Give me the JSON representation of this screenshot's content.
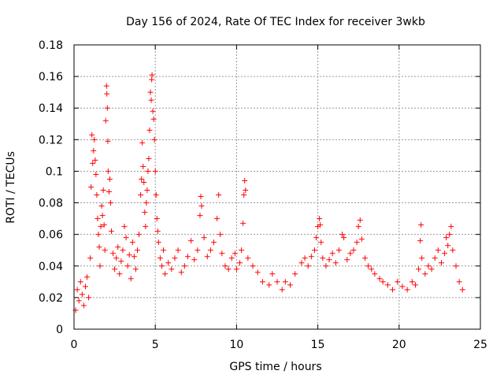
{
  "chart_data": {
    "type": "scatter",
    "title": "Day 156 of 2024, Rate Of TEC Index for receiver 3wkb",
    "xlabel": "GPS time / hours",
    "ylabel": "ROTI / TECUs",
    "xlim": [
      0,
      25
    ],
    "ylim": [
      0,
      0.18
    ],
    "x_ticks": [
      0,
      5,
      10,
      15,
      20,
      25
    ],
    "x_tick_labels": [
      "0",
      "5",
      "10",
      "15",
      "20",
      "25"
    ],
    "y_ticks": [
      0,
      0.02,
      0.04,
      0.06,
      0.08,
      0.1,
      0.12,
      0.14,
      0.16,
      0.18
    ],
    "y_tick_labels": [
      "0",
      "0.02",
      "0.04",
      "0.06",
      "0.08",
      "0.1",
      "0.12",
      "0.14",
      "0.16",
      "0.18"
    ],
    "grid": true,
    "marker": "+",
    "marker_color": "#ff0000",
    "series": [
      {
        "name": "ROTI",
        "points": [
          [
            0.1,
            0.012
          ],
          [
            0.2,
            0.025
          ],
          [
            0.3,
            0.018
          ],
          [
            0.4,
            0.03
          ],
          [
            0.5,
            0.022
          ],
          [
            0.6,
            0.015
          ],
          [
            0.7,
            0.027
          ],
          [
            0.8,
            0.033
          ],
          [
            0.9,
            0.02
          ],
          [
            1.0,
            0.045
          ],
          [
            1.05,
            0.09
          ],
          [
            1.1,
            0.123
          ],
          [
            1.15,
            0.105
          ],
          [
            1.2,
            0.113
          ],
          [
            1.25,
            0.12
          ],
          [
            1.3,
            0.107
          ],
          [
            1.35,
            0.098
          ],
          [
            1.4,
            0.085
          ],
          [
            1.45,
            0.07
          ],
          [
            1.5,
            0.06
          ],
          [
            1.55,
            0.052
          ],
          [
            1.6,
            0.04
          ],
          [
            1.65,
            0.065
          ],
          [
            1.7,
            0.078
          ],
          [
            1.75,
            0.072
          ],
          [
            1.8,
            0.088
          ],
          [
            1.85,
            0.066
          ],
          [
            1.9,
            0.05
          ],
          [
            1.95,
            0.132
          ],
          [
            2.0,
            0.154
          ],
          [
            2.02,
            0.149
          ],
          [
            2.05,
            0.14
          ],
          [
            2.08,
            0.119
          ],
          [
            2.1,
            0.1
          ],
          [
            2.15,
            0.087
          ],
          [
            2.2,
            0.095
          ],
          [
            2.25,
            0.08
          ],
          [
            2.3,
            0.062
          ],
          [
            2.4,
            0.048
          ],
          [
            2.5,
            0.038
          ],
          [
            2.6,
            0.045
          ],
          [
            2.7,
            0.052
          ],
          [
            2.8,
            0.035
          ],
          [
            2.9,
            0.043
          ],
          [
            3.0,
            0.05
          ],
          [
            3.1,
            0.065
          ],
          [
            3.2,
            0.058
          ],
          [
            3.3,
            0.04
          ],
          [
            3.4,
            0.047
          ],
          [
            3.5,
            0.032
          ],
          [
            3.6,
            0.055
          ],
          [
            3.7,
            0.046
          ],
          [
            3.8,
            0.038
          ],
          [
            3.9,
            0.05
          ],
          [
            4.0,
            0.06
          ],
          [
            4.1,
            0.085
          ],
          [
            4.15,
            0.095
          ],
          [
            4.2,
            0.118
          ],
          [
            4.25,
            0.103
          ],
          [
            4.3,
            0.093
          ],
          [
            4.35,
            0.074
          ],
          [
            4.4,
            0.065
          ],
          [
            4.45,
            0.08
          ],
          [
            4.5,
            0.088
          ],
          [
            4.55,
            0.1
          ],
          [
            4.6,
            0.108
          ],
          [
            4.65,
            0.126
          ],
          [
            4.7,
            0.15
          ],
          [
            4.75,
            0.145
          ],
          [
            4.78,
            0.158
          ],
          [
            4.8,
            0.161
          ],
          [
            4.85,
            0.138
          ],
          [
            4.9,
            0.133
          ],
          [
            4.95,
            0.12
          ],
          [
            5.0,
            0.1
          ],
          [
            5.05,
            0.085
          ],
          [
            5.1,
            0.07
          ],
          [
            5.15,
            0.062
          ],
          [
            5.2,
            0.055
          ],
          [
            5.3,
            0.045
          ],
          [
            5.4,
            0.04
          ],
          [
            5.5,
            0.05
          ],
          [
            5.6,
            0.035
          ],
          [
            5.8,
            0.042
          ],
          [
            6.0,
            0.038
          ],
          [
            6.2,
            0.045
          ],
          [
            6.4,
            0.05
          ],
          [
            6.6,
            0.036
          ],
          [
            6.8,
            0.04
          ],
          [
            7.0,
            0.046
          ],
          [
            7.2,
            0.056
          ],
          [
            7.4,
            0.044
          ],
          [
            7.6,
            0.05
          ],
          [
            7.75,
            0.072
          ],
          [
            7.8,
            0.084
          ],
          [
            7.85,
            0.078
          ],
          [
            8.0,
            0.058
          ],
          [
            8.2,
            0.046
          ],
          [
            8.4,
            0.05
          ],
          [
            8.6,
            0.055
          ],
          [
            8.8,
            0.07
          ],
          [
            8.9,
            0.085
          ],
          [
            9.0,
            0.06
          ],
          [
            9.1,
            0.048
          ],
          [
            9.3,
            0.04
          ],
          [
            9.5,
            0.038
          ],
          [
            9.7,
            0.045
          ],
          [
            9.9,
            0.048
          ],
          [
            10.0,
            0.038
          ],
          [
            10.2,
            0.042
          ],
          [
            10.3,
            0.05
          ],
          [
            10.4,
            0.067
          ],
          [
            10.45,
            0.085
          ],
          [
            10.5,
            0.094
          ],
          [
            10.55,
            0.088
          ],
          [
            10.7,
            0.045
          ],
          [
            11.0,
            0.04
          ],
          [
            11.3,
            0.036
          ],
          [
            11.6,
            0.03
          ],
          [
            12.0,
            0.028
          ],
          [
            12.2,
            0.035
          ],
          [
            12.5,
            0.03
          ],
          [
            12.8,
            0.025
          ],
          [
            13.0,
            0.03
          ],
          [
            13.3,
            0.028
          ],
          [
            13.6,
            0.035
          ],
          [
            14.0,
            0.042
          ],
          [
            14.2,
            0.045
          ],
          [
            14.4,
            0.04
          ],
          [
            14.6,
            0.046
          ],
          [
            14.8,
            0.05
          ],
          [
            14.9,
            0.058
          ],
          [
            15.0,
            0.065
          ],
          [
            15.1,
            0.07
          ],
          [
            15.15,
            0.066
          ],
          [
            15.2,
            0.055
          ],
          [
            15.3,
            0.045
          ],
          [
            15.5,
            0.04
          ],
          [
            15.7,
            0.044
          ],
          [
            15.9,
            0.048
          ],
          [
            16.1,
            0.042
          ],
          [
            16.3,
            0.05
          ],
          [
            16.5,
            0.06
          ],
          [
            16.6,
            0.058
          ],
          [
            16.8,
            0.044
          ],
          [
            17.0,
            0.048
          ],
          [
            17.2,
            0.05
          ],
          [
            17.4,
            0.055
          ],
          [
            17.5,
            0.065
          ],
          [
            17.6,
            0.069
          ],
          [
            17.7,
            0.057
          ],
          [
            17.9,
            0.045
          ],
          [
            18.1,
            0.04
          ],
          [
            18.3,
            0.038
          ],
          [
            18.5,
            0.035
          ],
          [
            18.8,
            0.032
          ],
          [
            19.0,
            0.03
          ],
          [
            19.3,
            0.028
          ],
          [
            19.6,
            0.025
          ],
          [
            19.9,
            0.03
          ],
          [
            20.2,
            0.027
          ],
          [
            20.5,
            0.025
          ],
          [
            20.8,
            0.03
          ],
          [
            21.0,
            0.028
          ],
          [
            21.2,
            0.038
          ],
          [
            21.3,
            0.056
          ],
          [
            21.35,
            0.066
          ],
          [
            21.4,
            0.045
          ],
          [
            21.6,
            0.035
          ],
          [
            21.8,
            0.04
          ],
          [
            22.0,
            0.038
          ],
          [
            22.2,
            0.045
          ],
          [
            22.4,
            0.05
          ],
          [
            22.6,
            0.042
          ],
          [
            22.8,
            0.048
          ],
          [
            22.9,
            0.058
          ],
          [
            23.0,
            0.053
          ],
          [
            23.1,
            0.06
          ],
          [
            23.2,
            0.065
          ],
          [
            23.3,
            0.05
          ],
          [
            23.5,
            0.04
          ],
          [
            23.7,
            0.03
          ],
          [
            23.9,
            0.025
          ]
        ]
      }
    ]
  }
}
